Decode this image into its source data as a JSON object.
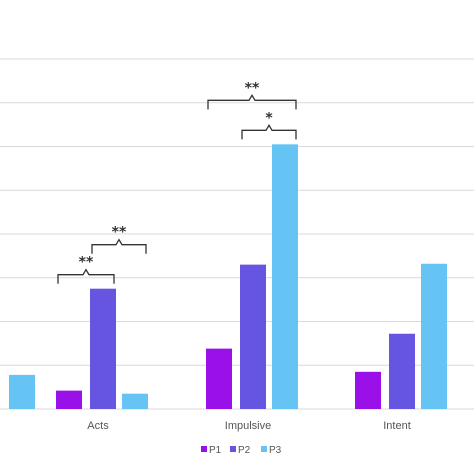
{
  "chart_data": {
    "type": "bar",
    "categories": [
      "",
      "Acts",
      "Impulsive",
      "Intent"
    ],
    "series": [
      {
        "name": "P1",
        "color": "#9a10e8",
        "values": [
          null,
          0.42,
          1.38,
          0.85
        ]
      },
      {
        "name": "P2",
        "color": "#6655e0",
        "values": [
          null,
          2.75,
          3.3,
          1.72
        ]
      },
      {
        "name": "P3",
        "color": "#66c4f5",
        "values": [
          0.78,
          0.35,
          6.05,
          3.32
        ]
      }
    ],
    "ylim": [
      0,
      8
    ],
    "grid": true,
    "legend": "bottom",
    "significance": [
      {
        "category": "Acts",
        "from": "P1",
        "to": "P2",
        "label": "**"
      },
      {
        "category": "Acts",
        "from": "P2",
        "to": "P3",
        "label": "**"
      },
      {
        "category": "Impulsive",
        "from": "P1",
        "to": "P3",
        "label": "**"
      },
      {
        "category": "Impulsive",
        "from": "P2",
        "to": "P3",
        "label": "*"
      }
    ]
  }
}
